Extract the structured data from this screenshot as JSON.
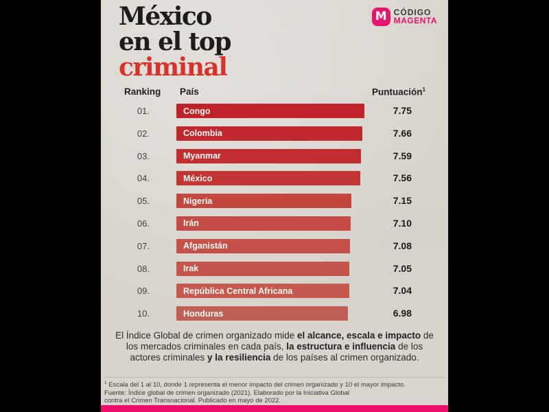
{
  "colors": {
    "paper": "#d8d4cd",
    "letterbox": "#000000",
    "title_accent": "#d5342d",
    "magenta": "#e4156e",
    "bottom_bar": "#ee0f6d",
    "highlight_oval": "#eda337"
  },
  "title": {
    "line1": "México",
    "line2": "en el top",
    "line3": "criminal"
  },
  "logo": {
    "icon_letter": "M",
    "name_top": "CÓDIGO",
    "name_bottom": "MAGENTA"
  },
  "table": {
    "headers": {
      "ranking": "Ranking",
      "country": "País",
      "score": "Puntuación",
      "score_superscript": "1"
    }
  },
  "chart_data": {
    "type": "bar",
    "title": "México en el top criminal",
    "xlabel": "Puntuación (1-10)",
    "ylabel": "País",
    "xlim": [
      0,
      10
    ],
    "categories": [
      "Congo",
      "Colombia",
      "Myanmar",
      "México",
      "Nigeria",
      "Irán",
      "Afganistán",
      "Irak",
      "República Central Africana",
      "Honduras"
    ],
    "values": [
      7.75,
      7.66,
      7.59,
      7.56,
      7.15,
      7.1,
      7.08,
      7.05,
      7.04,
      6.98
    ],
    "value_labels": [
      "7.75",
      "7.66",
      "7.59",
      "7.56",
      "7.15",
      "7.10",
      "7.08",
      "7.05",
      "7.04",
      "6.98"
    ],
    "rank_labels": [
      "01.",
      "02.",
      "03.",
      "04.",
      "05.",
      "06.",
      "07.",
      "08.",
      "09.",
      "10."
    ],
    "bar_colors": [
      "#c0222a",
      "#c1282d",
      "#c22e30",
      "#c23533",
      "#c3473f",
      "#c44c44",
      "#c45048",
      "#c5544b",
      "#c6584e",
      "#c05f56"
    ],
    "highlighted_category": "México",
    "legend": null,
    "grid": false
  },
  "description": {
    "segments": [
      {
        "text": "El Índice Global de crimen organizado mide ",
        "bold": false
      },
      {
        "text": "el alcance, escala e impacto",
        "bold": true
      },
      {
        "text": " de los mercados criminales en cada país, ",
        "bold": false
      },
      {
        "text": "la estructura e influencia",
        "bold": true
      },
      {
        "text": " de los actores criminales ",
        "bold": false
      },
      {
        "text": "y la resiliencia",
        "bold": true
      },
      {
        "text": " de los países al crimen organizado.",
        "bold": false
      }
    ]
  },
  "footnote": {
    "superscript": "1",
    "line1": "Escala del 1 al 10, donde 1 representa el menor impacto del crimen organizado y 10 el mayor impacto.",
    "line2": "Fuente: Índice global de crimen organizado (2021). Elaborado por la Iniciativa Global",
    "line3": "contra el Crimen Transnacional. Publicado en mayo de 2022."
  }
}
